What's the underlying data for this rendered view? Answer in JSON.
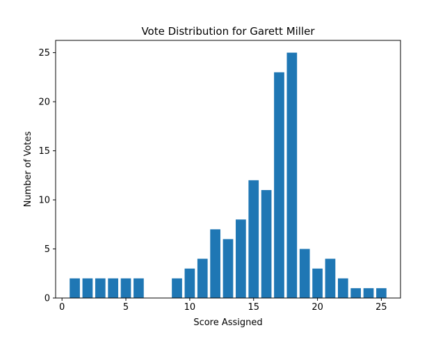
{
  "chart_data": {
    "type": "bar",
    "title": "Vote Distribution for Garett Miller",
    "xlabel": "Score Assigned",
    "ylabel": "Number of Votes",
    "x": [
      1,
      2,
      3,
      4,
      5,
      6,
      9,
      10,
      11,
      12,
      13,
      14,
      15,
      16,
      17,
      18,
      19,
      20,
      21,
      22,
      23,
      24,
      25
    ],
    "values": [
      2,
      2,
      2,
      2,
      2,
      2,
      2,
      3,
      4,
      7,
      6,
      8,
      12,
      11,
      23,
      25,
      5,
      3,
      4,
      2,
      1,
      1,
      1
    ],
    "xlim": [
      -0.5,
      26.5
    ],
    "ylim": [
      0,
      26.25
    ],
    "xticks": [
      0,
      5,
      10,
      15,
      20,
      25
    ],
    "yticks": [
      0,
      5,
      10,
      15,
      20,
      25
    ],
    "bar_color": "#1f77b4",
    "grid": false,
    "legend": "none"
  }
}
